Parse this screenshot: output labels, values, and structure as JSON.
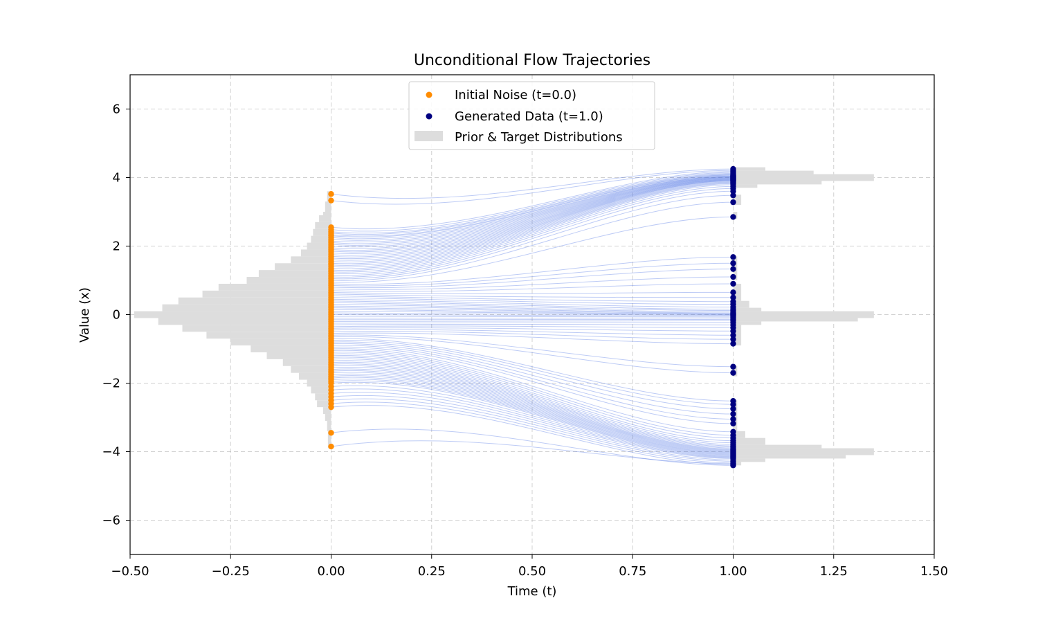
{
  "chart_data": {
    "type": "line",
    "title": "Unconditional Flow Trajectories",
    "xlabel": "Time (t)",
    "ylabel": "Value (x)",
    "xlim": [
      -0.5,
      1.5
    ],
    "ylim": [
      -7,
      7
    ],
    "grid": true,
    "grid_style": "dashed",
    "legend_placement": "top-center",
    "x_ticks": [
      -0.5,
      -0.25,
      0.0,
      0.25,
      0.5,
      0.75,
      1.0,
      1.25,
      1.5
    ],
    "x_tick_labels": [
      "−0.50",
      "−0.25",
      "0.00",
      "0.25",
      "0.50",
      "0.75",
      "1.00",
      "1.25",
      "1.50"
    ],
    "y_ticks": [
      -6,
      -4,
      -2,
      0,
      2,
      4,
      6
    ],
    "y_tick_labels": [
      "−6",
      "−4",
      "−2",
      "0",
      "2",
      "4",
      "6"
    ],
    "legend": [
      {
        "label": "Initial Noise (t=0.0)",
        "kind": "marker",
        "color": "#ff8c00"
      },
      {
        "label": "Generated Data (t=1.0)",
        "kind": "marker",
        "color": "#000080"
      },
      {
        "label": "Prior & Target Distributions",
        "kind": "patch",
        "color": "#dddddd"
      }
    ],
    "colors": {
      "initial_noise": "#ff8c00",
      "generated_data": "#000080",
      "trajectory": "#4169e1",
      "histogram": "#dddddd"
    },
    "trajectories": {
      "t_start": 0.0,
      "t_end": 1.0,
      "pairs": [
        [
          3.52,
          4.25
        ],
        [
          3.33,
          4.21
        ],
        [
          2.55,
          4.18
        ],
        [
          2.48,
          4.15
        ],
        [
          2.42,
          4.12
        ],
        [
          2.38,
          4.1
        ],
        [
          2.33,
          4.08
        ],
        [
          2.3,
          4.07
        ],
        [
          2.25,
          4.05
        ],
        [
          2.2,
          4.04
        ],
        [
          2.15,
          4.03
        ],
        [
          2.1,
          4.02
        ],
        [
          2.05,
          4.01
        ],
        [
          2.0,
          4.0
        ],
        [
          1.95,
          3.99
        ],
        [
          1.9,
          3.98
        ],
        [
          1.85,
          3.97
        ],
        [
          1.8,
          3.96
        ],
        [
          1.75,
          3.95
        ],
        [
          1.7,
          3.94
        ],
        [
          1.65,
          3.93
        ],
        [
          1.6,
          3.92
        ],
        [
          1.55,
          3.91
        ],
        [
          1.5,
          3.9
        ],
        [
          1.45,
          3.88
        ],
        [
          1.4,
          3.86
        ],
        [
          1.35,
          3.84
        ],
        [
          1.3,
          3.82
        ],
        [
          1.25,
          3.79
        ],
        [
          1.2,
          3.74
        ],
        [
          1.15,
          3.68
        ],
        [
          1.1,
          3.6
        ],
        [
          1.05,
          3.48
        ],
        [
          1.0,
          3.28
        ],
        [
          0.95,
          2.85
        ],
        [
          0.9,
          1.68
        ],
        [
          0.85,
          1.5
        ],
        [
          0.8,
          1.33
        ],
        [
          0.75,
          1.1
        ],
        [
          0.7,
          0.9
        ],
        [
          0.65,
          0.65
        ],
        [
          0.6,
          0.5
        ],
        [
          0.55,
          0.38
        ],
        [
          0.5,
          0.3
        ],
        [
          0.45,
          0.22
        ],
        [
          0.4,
          0.16
        ],
        [
          0.35,
          0.12
        ],
        [
          0.3,
          0.08
        ],
        [
          0.25,
          0.05
        ],
        [
          0.2,
          0.03
        ],
        [
          0.15,
          0.01
        ],
        [
          0.1,
          0.0
        ],
        [
          0.05,
          -0.02
        ],
        [
          0.0,
          -0.04
        ],
        [
          -0.05,
          -0.07
        ],
        [
          -0.1,
          -0.1
        ],
        [
          -0.15,
          -0.14
        ],
        [
          -0.2,
          -0.18
        ],
        [
          -0.25,
          -0.23
        ],
        [
          -0.3,
          -0.3
        ],
        [
          -0.35,
          -0.38
        ],
        [
          -0.4,
          -0.48
        ],
        [
          -0.45,
          -0.6
        ],
        [
          -0.5,
          -0.72
        ],
        [
          -0.55,
          -0.85
        ],
        [
          -0.6,
          -1.52
        ],
        [
          -0.65,
          -1.7
        ],
        [
          -0.7,
          -2.52
        ],
        [
          -0.75,
          -2.62
        ],
        [
          -0.8,
          -2.75
        ],
        [
          -0.85,
          -2.9
        ],
        [
          -0.9,
          -3.05
        ],
        [
          -0.95,
          -3.18
        ],
        [
          -1.0,
          -3.42
        ],
        [
          -1.05,
          -3.52
        ],
        [
          -1.1,
          -3.6
        ],
        [
          -1.15,
          -3.68
        ],
        [
          -1.2,
          -3.74
        ],
        [
          -1.25,
          -3.79
        ],
        [
          -1.3,
          -3.83
        ],
        [
          -1.35,
          -3.86
        ],
        [
          -1.4,
          -3.89
        ],
        [
          -1.45,
          -3.92
        ],
        [
          -1.5,
          -3.94
        ],
        [
          -1.55,
          -3.96
        ],
        [
          -1.6,
          -3.98
        ],
        [
          -1.65,
          -4.0
        ],
        [
          -1.7,
          -4.02
        ],
        [
          -1.75,
          -4.04
        ],
        [
          -1.8,
          -4.06
        ],
        [
          -1.85,
          -4.08
        ],
        [
          -1.9,
          -4.1
        ],
        [
          -1.95,
          -4.12
        ],
        [
          -2.0,
          -4.14
        ],
        [
          -2.1,
          -4.16
        ],
        [
          -2.2,
          -4.18
        ],
        [
          -2.3,
          -4.2
        ],
        [
          -2.4,
          -4.24
        ],
        [
          -2.5,
          -4.28
        ],
        [
          -2.6,
          -4.33
        ],
        [
          -2.7,
          -4.38
        ],
        [
          -3.45,
          -4.4
        ],
        [
          -3.85,
          -4.35
        ]
      ]
    },
    "prior_histogram": {
      "orientation": "horizontal",
      "baseline_x": 0.0,
      "direction": "left",
      "bins": [
        [
          3.3,
          3.6,
          0.01
        ],
        [
          3.0,
          3.3,
          0.015
        ],
        [
          2.9,
          3.0,
          0.02
        ],
        [
          2.7,
          2.9,
          0.03
        ],
        [
          2.5,
          2.7,
          0.04
        ],
        [
          2.3,
          2.5,
          0.045
        ],
        [
          2.1,
          2.3,
          0.05
        ],
        [
          1.9,
          2.1,
          0.06
        ],
        [
          1.7,
          1.9,
          0.075
        ],
        [
          1.5,
          1.7,
          0.1
        ],
        [
          1.3,
          1.5,
          0.14
        ],
        [
          1.1,
          1.3,
          0.18
        ],
        [
          0.9,
          1.1,
          0.21
        ],
        [
          0.7,
          0.9,
          0.28
        ],
        [
          0.5,
          0.7,
          0.32
        ],
        [
          0.3,
          0.5,
          0.38
        ],
        [
          0.1,
          0.3,
          0.42
        ],
        [
          -0.1,
          0.1,
          0.49
        ],
        [
          -0.3,
          -0.1,
          0.43
        ],
        [
          -0.5,
          -0.3,
          0.37
        ],
        [
          -0.7,
          -0.5,
          0.31
        ],
        [
          -0.9,
          -0.7,
          0.25
        ],
        [
          -1.1,
          -0.9,
          0.2
        ],
        [
          -1.3,
          -1.1,
          0.16
        ],
        [
          -1.5,
          -1.3,
          0.12
        ],
        [
          -1.7,
          -1.5,
          0.1
        ],
        [
          -1.9,
          -1.7,
          0.08
        ],
        [
          -2.1,
          -1.9,
          0.06
        ],
        [
          -2.3,
          -2.1,
          0.05
        ],
        [
          -2.5,
          -2.3,
          0.04
        ],
        [
          -2.7,
          -2.5,
          0.035
        ],
        [
          -2.9,
          -2.7,
          0.02
        ],
        [
          -3.1,
          -2.9,
          0.015
        ],
        [
          -3.4,
          -3.1,
          0.01
        ],
        [
          -3.9,
          -3.4,
          0.008
        ]
      ]
    },
    "target_histogram": {
      "orientation": "horizontal",
      "baseline_x": 1.0,
      "direction": "right",
      "bins": [
        [
          4.2,
          4.3,
          0.08
        ],
        [
          4.1,
          4.2,
          0.2
        ],
        [
          4.0,
          4.1,
          0.35
        ],
        [
          3.9,
          4.0,
          0.35
        ],
        [
          3.8,
          3.9,
          0.22
        ],
        [
          3.7,
          3.8,
          0.06
        ],
        [
          3.2,
          3.5,
          0.02
        ],
        [
          2.8,
          3.0,
          0.01
        ],
        [
          1.0,
          1.7,
          0.01
        ],
        [
          0.4,
          0.9,
          0.02
        ],
        [
          0.2,
          0.4,
          0.04
        ],
        [
          0.1,
          0.2,
          0.07
        ],
        [
          0.0,
          0.1,
          0.35
        ],
        [
          -0.1,
          0.0,
          0.35
        ],
        [
          -0.2,
          -0.1,
          0.31
        ],
        [
          -0.3,
          -0.2,
          0.07
        ],
        [
          -0.9,
          -0.3,
          0.02
        ],
        [
          -1.8,
          -1.5,
          0.01
        ],
        [
          -3.4,
          -2.5,
          0.01
        ],
        [
          -3.6,
          -3.4,
          0.03
        ],
        [
          -3.8,
          -3.6,
          0.08
        ],
        [
          -3.9,
          -3.8,
          0.22
        ],
        [
          -4.0,
          -3.9,
          0.35
        ],
        [
          -4.1,
          -4.0,
          0.35
        ],
        [
          -4.2,
          -4.1,
          0.28
        ],
        [
          -4.3,
          -4.2,
          0.08
        ],
        [
          -4.4,
          -4.3,
          0.02
        ]
      ]
    }
  }
}
